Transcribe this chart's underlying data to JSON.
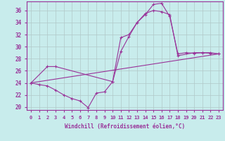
{
  "xlabel": "Windchill (Refroidissement éolien,°C)",
  "bg_color": "#c8ecec",
  "line_color": "#993399",
  "grid_color": "#b0c8c8",
  "xlim": [
    -0.5,
    23.5
  ],
  "ylim": [
    19.5,
    37.5
  ],
  "yticks": [
    20,
    22,
    24,
    26,
    28,
    30,
    32,
    34,
    36
  ],
  "xticks": [
    0,
    1,
    2,
    3,
    4,
    5,
    6,
    7,
    8,
    9,
    10,
    11,
    12,
    13,
    14,
    15,
    16,
    17,
    18,
    19,
    20,
    21,
    22,
    23
  ],
  "line1_x": [
    0,
    1,
    2,
    3,
    4,
    5,
    6,
    7,
    8,
    9,
    10,
    11,
    12,
    13,
    14,
    15,
    16,
    17,
    18,
    19,
    20,
    21,
    22,
    23
  ],
  "line1_y": [
    24.0,
    23.7,
    23.5,
    22.8,
    22.0,
    21.4,
    21.0,
    19.9,
    22.3,
    22.5,
    24.2,
    29.2,
    31.7,
    34.0,
    35.3,
    37.0,
    37.2,
    35.0,
    28.8,
    29.0,
    28.9,
    29.0,
    28.9,
    28.8
  ],
  "line2_x": [
    0,
    2,
    3,
    10,
    11,
    12,
    13,
    14,
    15,
    16,
    17,
    18,
    20,
    21,
    22,
    23
  ],
  "line2_y": [
    24.0,
    26.7,
    26.7,
    24.2,
    31.5,
    32.0,
    34.0,
    35.5,
    36.0,
    35.8,
    35.3,
    28.5,
    29.0,
    29.0,
    29.0,
    28.8
  ],
  "line3_x": [
    0,
    23
  ],
  "line3_y": [
    24.0,
    28.8
  ]
}
